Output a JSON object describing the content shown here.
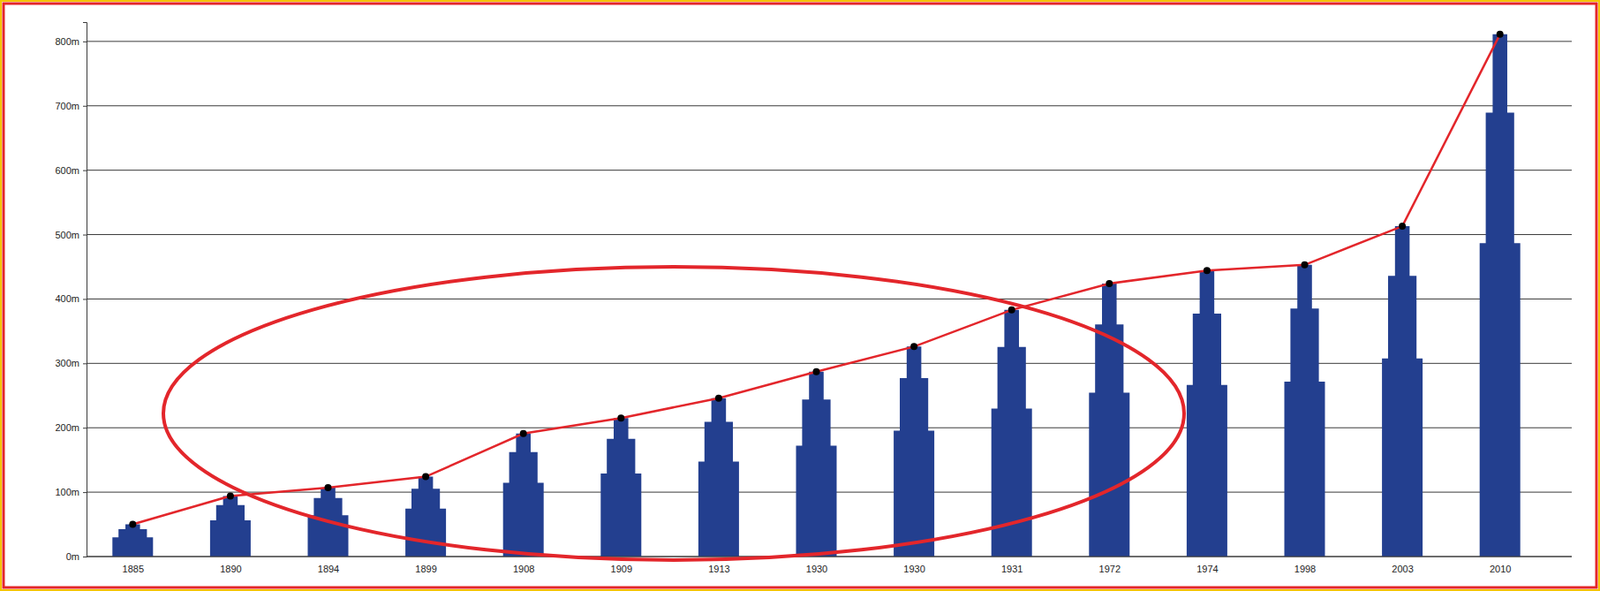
{
  "chart_data": {
    "type": "bar",
    "categories": [
      "1885",
      "1890",
      "1894",
      "1899",
      "1908",
      "1909",
      "1913",
      "1930",
      "1930",
      "1931",
      "1972",
      "1974",
      "1998",
      "2003",
      "2010"
    ],
    "series": [
      {
        "type": "bar",
        "color": "#233f8f",
        "values": [
          50,
          94,
          107,
          124,
          191,
          215,
          246,
          287,
          326,
          383,
          424,
          444,
          453,
          513,
          811
        ]
      },
      {
        "type": "line",
        "color": "#e3262b",
        "marker": "circle",
        "values": [
          50,
          94,
          107,
          124,
          191,
          215,
          246,
          287,
          326,
          383,
          424,
          444,
          453,
          513,
          811
        ]
      }
    ],
    "ylim": [
      0,
      830
    ],
    "yticks": [
      {
        "value": 0,
        "label": "0m"
      },
      {
        "value": 100,
        "label": "100m"
      },
      {
        "value": 200,
        "label": "200m"
      },
      {
        "value": 300,
        "label": "300m"
      },
      {
        "value": 400,
        "label": "400m"
      },
      {
        "value": 500,
        "label": "500m"
      },
      {
        "value": 600,
        "label": "600m"
      },
      {
        "value": 700,
        "label": "700m"
      },
      {
        "value": 800,
        "label": "800m"
      }
    ],
    "grid": true
  }
}
